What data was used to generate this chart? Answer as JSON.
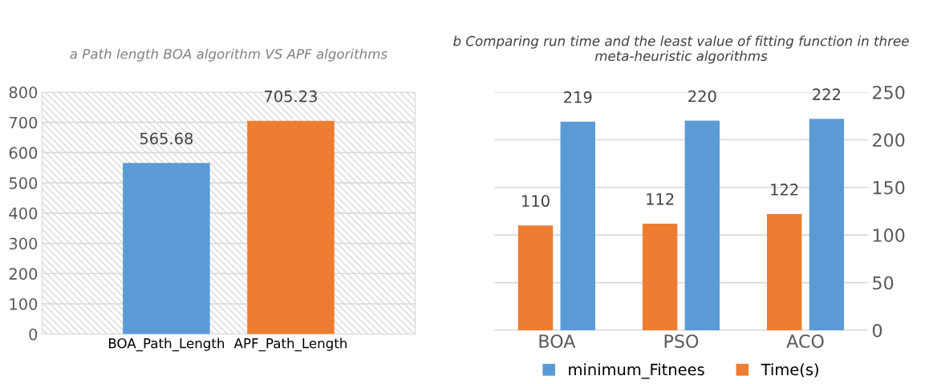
{
  "chart_data": [
    {
      "type": "bar",
      "title": "a Path length BOA algorithm VS APF algorithms",
      "categories": [
        "BOA_Path_Length",
        "APF_Path_Length"
      ],
      "values": [
        565.68,
        705.23
      ],
      "colors": [
        "#5b9bd5",
        "#ed7d31"
      ],
      "ylim": [
        0,
        800
      ],
      "yticks": [
        0,
        100,
        200,
        300,
        400,
        500,
        600,
        700,
        800
      ],
      "grid": "y",
      "data_labels": true
    },
    {
      "type": "bar",
      "title": "b Comparing run time and the least value of fitting function in three meta-heuristic algorithms",
      "categories": [
        "BOA",
        "PSO",
        "ACO"
      ],
      "series": [
        {
          "name": "Time(s)",
          "color": "#ed7d31",
          "values": [
            110,
            112,
            122
          ]
        },
        {
          "name": "minimum_Fitnees",
          "color": "#5b9bd5",
          "values": [
            219,
            220,
            222
          ]
        }
      ],
      "ylim": [
        0,
        250
      ],
      "yticks": [
        0,
        50,
        100,
        150,
        200,
        250
      ],
      "grid": "y",
      "legend": "bottom",
      "data_labels": true
    }
  ]
}
